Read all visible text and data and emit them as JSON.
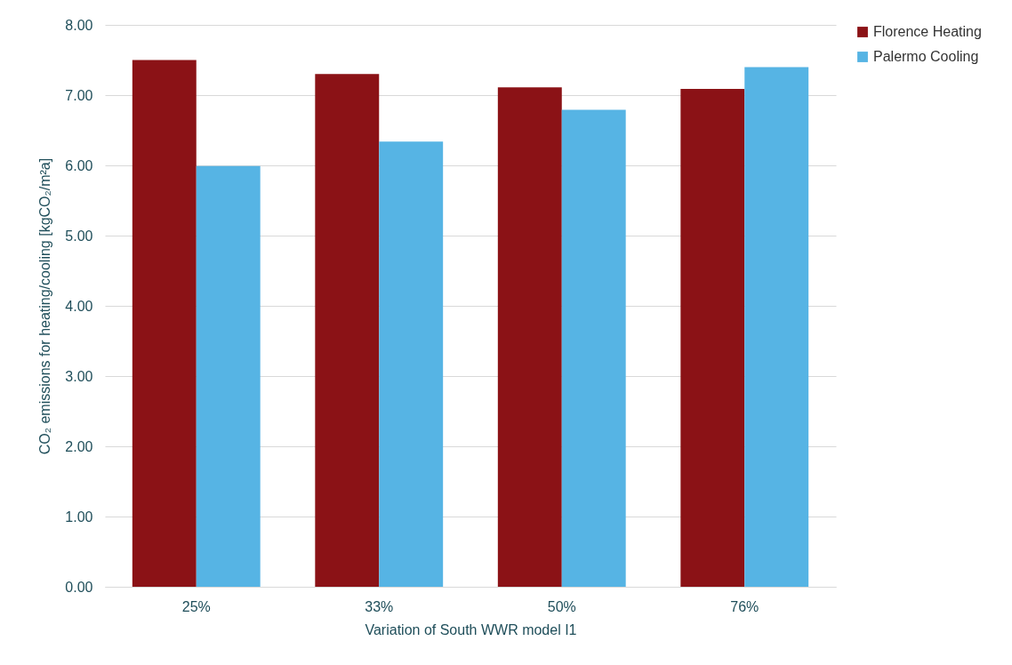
{
  "chart_data": {
    "type": "bar",
    "xlabel": "Variation of South WWR model I1",
    "ylabel": "CO₂ emissions for heating/cooling [kgCO₂/m²a]",
    "categories": [
      "25%",
      "33%",
      "50%",
      "76%"
    ],
    "series": [
      {
        "name": "Florence Heating",
        "color": "#8b1216",
        "values": [
          7.5,
          7.3,
          7.11,
          7.09
        ]
      },
      {
        "name": "Palermo Cooling",
        "color": "#56b4e4",
        "values": [
          5.99,
          6.34,
          6.79,
          7.4
        ]
      }
    ],
    "ylim": [
      0,
      8
    ],
    "yticks": [
      {
        "value": 0,
        "label": "0.00"
      },
      {
        "value": 1,
        "label": "1.00"
      },
      {
        "value": 2,
        "label": "2.00"
      },
      {
        "value": 3,
        "label": "3.00"
      },
      {
        "value": 4,
        "label": "4.00"
      },
      {
        "value": 5,
        "label": "5.00"
      },
      {
        "value": 6,
        "label": "6.00"
      },
      {
        "value": 7,
        "label": "7.00"
      },
      {
        "value": 8,
        "label": "8.00"
      }
    ],
    "grid": "y",
    "legend": "right"
  }
}
